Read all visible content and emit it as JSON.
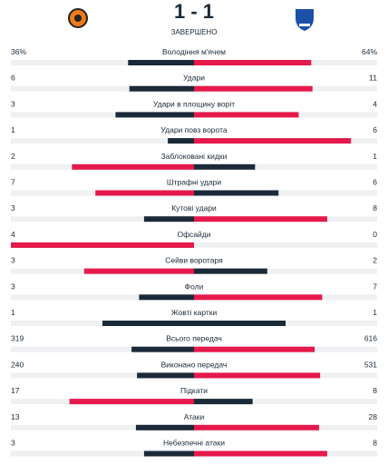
{
  "header": {
    "score": "1 - 1",
    "status": "ЗАВЕРШЕНО"
  },
  "stats": [
    {
      "label": "Володіння м'ячем",
      "home": 36,
      "away": 64,
      "home_label": "36%",
      "away_label": "64%"
    },
    {
      "label": "Удари",
      "home": 6,
      "away": 11
    },
    {
      "label": "Удари в площину воріт",
      "home": 3,
      "away": 4
    },
    {
      "label": "Удари повз ворота",
      "home": 1,
      "away": 6
    },
    {
      "label": "Заблоковані кидки",
      "home": 2,
      "away": 1
    },
    {
      "label": "Штрафні удари",
      "home": 7,
      "away": 6
    },
    {
      "label": "Кутові удари",
      "home": 3,
      "away": 8
    },
    {
      "label": "Офсайди",
      "home": 4,
      "away": 0
    },
    {
      "label": "Сейви воротаря",
      "home": 3,
      "away": 2
    },
    {
      "label": "Фоли",
      "home": 3,
      "away": 7
    },
    {
      "label": "Жовті картки",
      "home": 1,
      "away": 1
    },
    {
      "label": "Всього передач",
      "home": 319,
      "away": 616
    },
    {
      "label": "Виконано передач",
      "home": 240,
      "away": 531
    },
    {
      "label": "Підкати",
      "home": 17,
      "away": 8
    },
    {
      "label": "Атаки",
      "home": 13,
      "away": 28
    },
    {
      "label": "Небезпечні атаки",
      "home": 3,
      "away": 8
    }
  ]
}
